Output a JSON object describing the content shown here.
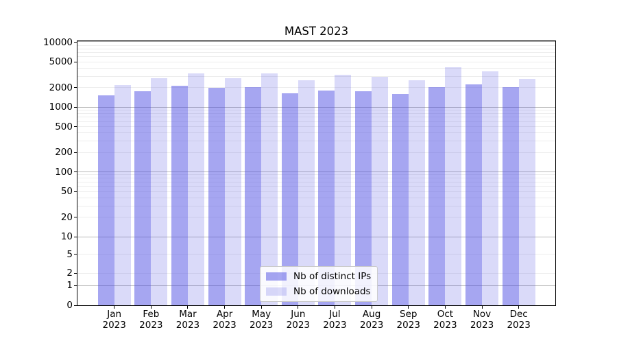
{
  "chart_data": {
    "type": "bar",
    "title": "MAST 2023",
    "yscale": "symlog",
    "grid": true,
    "legend_position": "lower center",
    "year": "2023",
    "categories": [
      "Jan",
      "Feb",
      "Mar",
      "Apr",
      "May",
      "Jun",
      "Jul",
      "Aug",
      "Sep",
      "Oct",
      "Nov",
      "Dec"
    ],
    "yticks": [
      0,
      1,
      2,
      5,
      10,
      20,
      50,
      100,
      200,
      500,
      1000,
      2000,
      5000,
      10000
    ],
    "ylim": [
      0,
      10000
    ],
    "series": [
      {
        "name": "Nb of distinct IPs",
        "color": "#4646e1",
        "opacity": 0.48,
        "color_on_white": "#a6a6f0",
        "values": [
          1520,
          1780,
          2150,
          1980,
          2050,
          1660,
          1800,
          1780,
          1620,
          2030,
          2270,
          2030
        ]
      },
      {
        "name": "Nb of downloads",
        "color": "#4646e1",
        "opacity": 0.2,
        "color_on_white": "#dadaf9",
        "values": [
          2220,
          2790,
          3330,
          2810,
          3330,
          2630,
          3180,
          2970,
          2630,
          4190,
          3590,
          2740
        ]
      }
    ],
    "colors": {
      "axis": "#000000",
      "grid_major": "#b8b8b8",
      "grid_minor": "#ececec",
      "legend_border": "#cbcbcb"
    }
  }
}
